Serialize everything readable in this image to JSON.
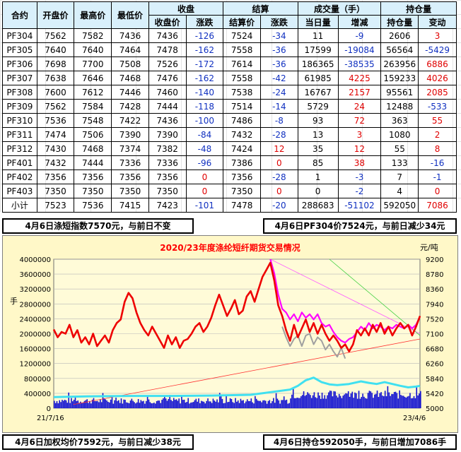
{
  "table": {
    "header1": [
      "合约",
      "开盘价",
      "最高价",
      "最低价",
      "收盘",
      "结算",
      "成交量（手）",
      "持仓量"
    ],
    "header2": [
      "收盘价",
      "涨跌",
      "结算价",
      "涨跌",
      "当日量",
      "增减",
      "持仓量",
      "变动"
    ],
    "rows": [
      {
        "contract": "PF304",
        "open": "7562",
        "high": "7582",
        "low": "7436",
        "close": "7436",
        "chg": "-126",
        "settle": "7524",
        "schg": "-34",
        "vol": "11",
        "volchg": "-9",
        "oi": "2606",
        "oichg": "3"
      },
      {
        "contract": "PF305",
        "open": "7640",
        "high": "7640",
        "low": "7464",
        "close": "7478",
        "chg": "-162",
        "settle": "7558",
        "schg": "-36",
        "vol": "17599",
        "volchg": "-19084",
        "oi": "56564",
        "oichg": "-5429"
      },
      {
        "contract": "PF306",
        "open": "7698",
        "high": "7700",
        "low": "7508",
        "close": "7526",
        "chg": "-172",
        "settle": "7614",
        "schg": "-36",
        "vol": "186365",
        "volchg": "-38535",
        "oi": "263956",
        "oichg": "6886"
      },
      {
        "contract": "PF307",
        "open": "7638",
        "high": "7646",
        "low": "7468",
        "close": "7476",
        "chg": "-162",
        "settle": "7558",
        "schg": "-42",
        "vol": "61985",
        "volchg": "4225",
        "oi": "159233",
        "oichg": "4026"
      },
      {
        "contract": "PF308",
        "open": "7600",
        "high": "7612",
        "low": "7446",
        "close": "7460",
        "chg": "-140",
        "settle": "7538",
        "schg": "-24",
        "vol": "16767",
        "volchg": "2157",
        "oi": "95561",
        "oichg": "2085"
      },
      {
        "contract": "PF309",
        "open": "7562",
        "high": "7584",
        "low": "7428",
        "close": "7444",
        "chg": "-118",
        "settle": "7514",
        "schg": "-14",
        "vol": "5729",
        "volchg": "24",
        "oi": "12488",
        "oichg": "-533"
      },
      {
        "contract": "PF310",
        "open": "7536",
        "high": "7548",
        "low": "7422",
        "close": "7436",
        "chg": "-100",
        "settle": "7486",
        "schg": "-8",
        "vol": "93",
        "volchg": "72",
        "oi": "363",
        "oichg": "55"
      },
      {
        "contract": "PF311",
        "open": "7474",
        "high": "7506",
        "low": "7390",
        "close": "7390",
        "chg": "-84",
        "settle": "7432",
        "schg": "-28",
        "vol": "13",
        "volchg": "3",
        "oi": "1080",
        "oichg": "2"
      },
      {
        "contract": "PF312",
        "open": "7430",
        "high": "7468",
        "low": "7374",
        "close": "7382",
        "chg": "-48",
        "settle": "7424",
        "schg": "12",
        "vol": "35",
        "volchg": "12",
        "oi": "55",
        "oichg": "8"
      },
      {
        "contract": "PF401",
        "open": "7432",
        "high": "7444",
        "low": "7336",
        "close": "7336",
        "chg": "-96",
        "settle": "7386",
        "schg": "0",
        "vol": "85",
        "volchg": "38",
        "oi": "133",
        "oichg": "-16"
      },
      {
        "contract": "PF402",
        "open": "7356",
        "high": "7356",
        "low": "7356",
        "close": "7356",
        "chg": "0",
        "settle": "7356",
        "schg": "-28",
        "vol": "1",
        "volchg": "-3",
        "oi": "7",
        "oichg": "-1"
      },
      {
        "contract": "PF403",
        "open": "7350",
        "high": "7350",
        "low": "7350",
        "close": "7350",
        "chg": "0",
        "settle": "7350",
        "schg": "0",
        "vol": "0",
        "volchg": "-2",
        "oi": "4",
        "oichg": "0"
      },
      {
        "contract": "小计",
        "open": "7523",
        "high": "7536",
        "low": "7415",
        "close": "7423",
        "chg": "-101",
        "settle": "7478",
        "schg": "-20",
        "vol": "288683",
        "volchg": "-51102",
        "oi": "592050",
        "oichg": "7086"
      }
    ]
  },
  "headlines": {
    "top_left": "4月6日涤短指数7570元，与前日不变",
    "top_right": "4月6日PF304价7524元，与前日减少34元",
    "bottom_left": "4月6日加权均价7592元，与前日减少38元",
    "bottom_right": "4月6日持仓592050手，与前日增加7086手"
  },
  "colors": {
    "header_bg": "#d9f0fb",
    "up": "#e00000",
    "down": "#1030c0",
    "chart_bg": "#fff8c8",
    "price_line": "#ee0000",
    "index_line": "#ff00ff",
    "gray_line": "#a0a0a0",
    "oi_line": "#40e0f0",
    "volume_bars": "#1010d0"
  },
  "chart_data": {
    "type": "line",
    "title": "2020/23年度涤纶短纤期货交易情况",
    "left_unit": "手",
    "right_unit": "元/吨",
    "x_start_label": "21/7/16",
    "x_end_label": "23/4/6",
    "left_ticks": [
      "0",
      "400000",
      "800000",
      "1200000",
      "1600000",
      "2000000",
      "2400000",
      "2800000",
      "3200000",
      "3600000",
      "4000000"
    ],
    "right_ticks": [
      "5000",
      "5420",
      "5840",
      "6260",
      "6680",
      "7100",
      "7520",
      "7940",
      "8360",
      "8780",
      "9200"
    ],
    "left_range": [
      0,
      4000000
    ],
    "right_range": [
      5000,
      9200
    ],
    "series": [
      {
        "key": "price",
        "axis": "right",
        "points": [
          [
            0,
            7220
          ],
          [
            1,
            7000
          ],
          [
            2,
            7150
          ],
          [
            3,
            7100
          ],
          [
            4,
            7350
          ],
          [
            5,
            7000
          ],
          [
            6,
            7200
          ],
          [
            7,
            6850
          ],
          [
            8,
            7000
          ],
          [
            9,
            6800
          ],
          [
            10,
            7100
          ],
          [
            11,
            6750
          ],
          [
            12,
            6900
          ],
          [
            13,
            7050
          ],
          [
            14,
            6850
          ],
          [
            15,
            7200
          ],
          [
            16,
            7400
          ],
          [
            17,
            7500
          ],
          [
            18,
            8000
          ],
          [
            19,
            8250
          ],
          [
            20,
            8100
          ],
          [
            21,
            7700
          ],
          [
            22,
            7400
          ],
          [
            23,
            7200
          ],
          [
            24,
            7050
          ],
          [
            25,
            7300
          ],
          [
            26,
            7100
          ],
          [
            27,
            6900
          ],
          [
            28,
            6700
          ],
          [
            29,
            7050
          ],
          [
            30,
            6800
          ],
          [
            31,
            7000
          ],
          [
            32,
            6700
          ],
          [
            33,
            6900
          ],
          [
            34,
            6950
          ],
          [
            35,
            7100
          ],
          [
            36,
            7300
          ],
          [
            37,
            7400
          ],
          [
            38,
            7150
          ],
          [
            39,
            7300
          ],
          [
            40,
            7550
          ],
          [
            41,
            7900
          ],
          [
            42,
            8200
          ],
          [
            43,
            7900
          ],
          [
            44,
            7600
          ],
          [
            45,
            7800
          ],
          [
            46,
            8050
          ],
          [
            47,
            7650
          ],
          [
            48,
            7750
          ],
          [
            49,
            8150
          ],
          [
            50,
            8300
          ],
          [
            51,
            8000
          ],
          [
            52,
            8350
          ],
          [
            53,
            8700
          ],
          [
            54,
            8900
          ],
          [
            55,
            9100
          ],
          [
            56,
            8600
          ],
          [
            57,
            7900
          ],
          [
            58,
            7600
          ],
          [
            59,
            7200
          ],
          [
            60,
            6900
          ],
          [
            61,
            7350
          ],
          [
            62,
            7000
          ],
          [
            63,
            7250
          ],
          [
            64,
            7500
          ],
          [
            65,
            7150
          ],
          [
            66,
            7400
          ],
          [
            67,
            7100
          ],
          [
            68,
            7350
          ],
          [
            69,
            7100
          ],
          [
            70,
            6900
          ],
          [
            71,
            7050
          ],
          [
            72,
            6900
          ],
          [
            73,
            6700
          ],
          [
            74,
            6800
          ],
          [
            75,
            6600
          ],
          [
            76,
            6800
          ],
          [
            77,
            7200
          ],
          [
            78,
            7050
          ],
          [
            79,
            7250
          ],
          [
            80,
            7050
          ],
          [
            81,
            7350
          ],
          [
            82,
            7150
          ],
          [
            83,
            7400
          ],
          [
            84,
            7100
          ],
          [
            85,
            7300
          ],
          [
            86,
            7050
          ],
          [
            87,
            7250
          ],
          [
            88,
            7400
          ],
          [
            89,
            7250
          ],
          [
            90,
            7350
          ],
          [
            91,
            7050
          ],
          [
            92,
            7300
          ],
          [
            93,
            7600
          ]
        ]
      },
      {
        "key": "index",
        "axis": "right",
        "points": [
          [
            55,
            9200
          ],
          [
            56,
            8800
          ],
          [
            57,
            8200
          ],
          [
            58,
            7800
          ],
          [
            59,
            7700
          ],
          [
            60,
            7500
          ],
          [
            61,
            7650
          ],
          [
            62,
            7450
          ],
          [
            63,
            7700
          ],
          [
            64,
            7550
          ],
          [
            65,
            7650
          ],
          [
            66,
            7500
          ],
          [
            67,
            7650
          ],
          [
            68,
            7400
          ],
          [
            69,
            7300
          ],
          [
            70,
            7350
          ],
          [
            71,
            7150
          ],
          [
            72,
            7000
          ],
          [
            73,
            6900
          ],
          [
            74,
            6850
          ],
          [
            75,
            6950
          ],
          [
            76,
            7000
          ],
          [
            77,
            7150
          ],
          [
            78,
            7300
          ],
          [
            79,
            7200
          ],
          [
            80,
            7400
          ],
          [
            81,
            7250
          ],
          [
            82,
            7350
          ],
          [
            83,
            7300
          ],
          [
            84,
            7200
          ],
          [
            85,
            7300
          ],
          [
            86,
            7250
          ],
          [
            87,
            7350
          ],
          [
            88,
            7300
          ],
          [
            89,
            7250
          ],
          [
            90,
            7350
          ],
          [
            91,
            7250
          ],
          [
            92,
            7350
          ],
          [
            93,
            7580
          ]
        ]
      },
      {
        "key": "spot",
        "axis": "right",
        "points": [
          [
            58,
            7300
          ],
          [
            59,
            7000
          ],
          [
            60,
            6750
          ],
          [
            61,
            6950
          ],
          [
            62,
            7050
          ],
          [
            63,
            6750
          ],
          [
            64,
            7050
          ],
          [
            65,
            7100
          ],
          [
            66,
            6800
          ],
          [
            67,
            7000
          ],
          [
            68,
            6900
          ],
          [
            69,
            6650
          ],
          [
            70,
            6800
          ],
          [
            71,
            6600
          ],
          [
            72,
            6450
          ],
          [
            73,
            6700
          ],
          [
            74,
            6400
          ]
        ]
      },
      {
        "key": "open_interest",
        "axis": "left",
        "points": [
          [
            0,
            300000
          ],
          [
            10,
            320000
          ],
          [
            20,
            330000
          ],
          [
            30,
            330000
          ],
          [
            40,
            340000
          ],
          [
            50,
            360000
          ],
          [
            55,
            430000
          ],
          [
            60,
            500000
          ],
          [
            62,
            600000
          ],
          [
            64,
            750000
          ],
          [
            66,
            820000
          ],
          [
            68,
            700000
          ],
          [
            70,
            640000
          ],
          [
            72,
            620000
          ],
          [
            75,
            650000
          ],
          [
            78,
            720000
          ],
          [
            80,
            680000
          ],
          [
            82,
            650000
          ],
          [
            84,
            700000
          ],
          [
            86,
            650000
          ],
          [
            88,
            600000
          ],
          [
            90,
            560000
          ],
          [
            92,
            580000
          ],
          [
            93,
            600000
          ]
        ]
      }
    ],
    "volume_seed_count": 94
  }
}
